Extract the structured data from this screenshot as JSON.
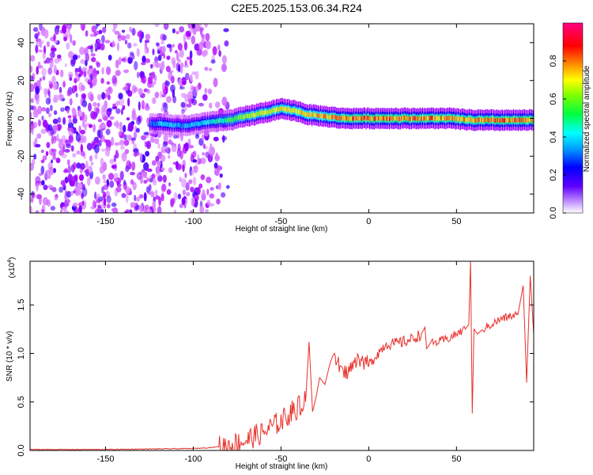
{
  "title": "C2E5.2025.153.06.34.R24",
  "colors": {
    "snr_line": "#e8302a",
    "axis": "#000000",
    "spectrogram_colormap": [
      "#ffffff",
      "#b000ff",
      "#4000ff",
      "#0000ff",
      "#00b0ff",
      "#00ffff",
      "#00ff40",
      "#b0ff00",
      "#ffff00",
      "#ff8000",
      "#ff0000",
      "#ff0080"
    ]
  },
  "chart_data": [
    {
      "type": "heatmap",
      "title": "C2E5.2025.153.06.34.R24",
      "xlabel": "Height of straight line (km)",
      "ylabel": "Frequency (Hz)",
      "xlim": [
        -193,
        94
      ],
      "ylim": [
        -50,
        50
      ],
      "x_ticks": [
        -150,
        -100,
        -50,
        0,
        50
      ],
      "y_ticks": [
        -40,
        -20,
        0,
        20,
        40
      ],
      "colorbar": {
        "label": "Normalized spectral amplitude",
        "range": [
          0.0,
          1.0
        ],
        "ticks": [
          "0.0",
          "0.2",
          "0.4",
          "0.6",
          "0.8"
        ],
        "tick_values": [
          0.0,
          0.2,
          0.4,
          0.6,
          0.8
        ]
      },
      "noise_region_x": [
        -193,
        -80
      ],
      "signal_track": [
        {
          "x": -125,
          "f": -3,
          "amp": 0.35
        },
        {
          "x": -118,
          "f": -3,
          "amp": 0.45
        },
        {
          "x": -105,
          "f": -4,
          "amp": 0.4
        },
        {
          "x": -92,
          "f": -2,
          "amp": 0.5
        },
        {
          "x": -80,
          "f": -1,
          "amp": 0.6
        },
        {
          "x": -70,
          "f": 1,
          "amp": 0.7
        },
        {
          "x": -60,
          "f": 3,
          "amp": 0.75
        },
        {
          "x": -50,
          "f": 5,
          "amp": 0.8
        },
        {
          "x": -42,
          "f": 4,
          "amp": 0.8
        },
        {
          "x": -35,
          "f": 2,
          "amp": 0.82
        },
        {
          "x": -25,
          "f": 1,
          "amp": 0.85
        },
        {
          "x": -15,
          "f": 0,
          "amp": 0.9
        },
        {
          "x": 0,
          "f": 0,
          "amp": 0.92
        },
        {
          "x": 15,
          "f": 0,
          "amp": 0.92
        },
        {
          "x": 30,
          "f": 0,
          "amp": 0.9
        },
        {
          "x": 45,
          "f": 0,
          "amp": 0.9
        },
        {
          "x": 60,
          "f": -1,
          "amp": 0.9
        },
        {
          "x": 75,
          "f": -1,
          "amp": 0.92
        },
        {
          "x": 94,
          "f": -1,
          "amp": 0.92
        }
      ]
    },
    {
      "type": "line",
      "xlabel": "Height of straight line (km)",
      "ylabel": "SNR (10 * v/v)",
      "y_multiplier_label": "(x10",
      "y_multiplier_exp": "4",
      "y_multiplier_close": ")",
      "xlim": [
        -193,
        94
      ],
      "ylim": [
        0.0,
        1.95
      ],
      "x_ticks": [
        -150,
        -100,
        -50,
        0,
        50
      ],
      "y_ticks": [
        0.0,
        0.5,
        1.0,
        1.5
      ],
      "y_tick_labels": [
        "0.0",
        "0.5",
        "1.0",
        "1.5"
      ],
      "series": [
        {
          "x": [
            -193,
            -150,
            -100,
            -90,
            -80,
            -75,
            -70,
            -65,
            -60,
            -55,
            -50,
            -45,
            -40,
            -36,
            -34,
            -32,
            -30,
            -28,
            -25,
            -22,
            -20,
            -15,
            -10,
            -5,
            0,
            5,
            10,
            15,
            20,
            25,
            30,
            32,
            33,
            35,
            40,
            45,
            50,
            55,
            57,
            58,
            59,
            60,
            62,
            65,
            70,
            75,
            80,
            85,
            88,
            90,
            92,
            94
          ],
          "y": [
            0.01,
            0.01,
            0.02,
            0.03,
            0.05,
            0.08,
            0.1,
            0.15,
            0.18,
            0.25,
            0.3,
            0.38,
            0.45,
            0.5,
            1.12,
            0.4,
            0.55,
            0.75,
            0.68,
            0.9,
            1.0,
            0.78,
            0.85,
            0.95,
            0.88,
            1.0,
            1.1,
            1.1,
            1.12,
            1.15,
            1.2,
            1.27,
            1.05,
            1.1,
            1.12,
            1.15,
            1.2,
            1.25,
            1.3,
            1.95,
            0.38,
            1.25,
            1.2,
            1.25,
            1.3,
            1.35,
            1.38,
            1.4,
            1.7,
            0.7,
            1.8,
            1.2
          ]
        }
      ]
    }
  ]
}
